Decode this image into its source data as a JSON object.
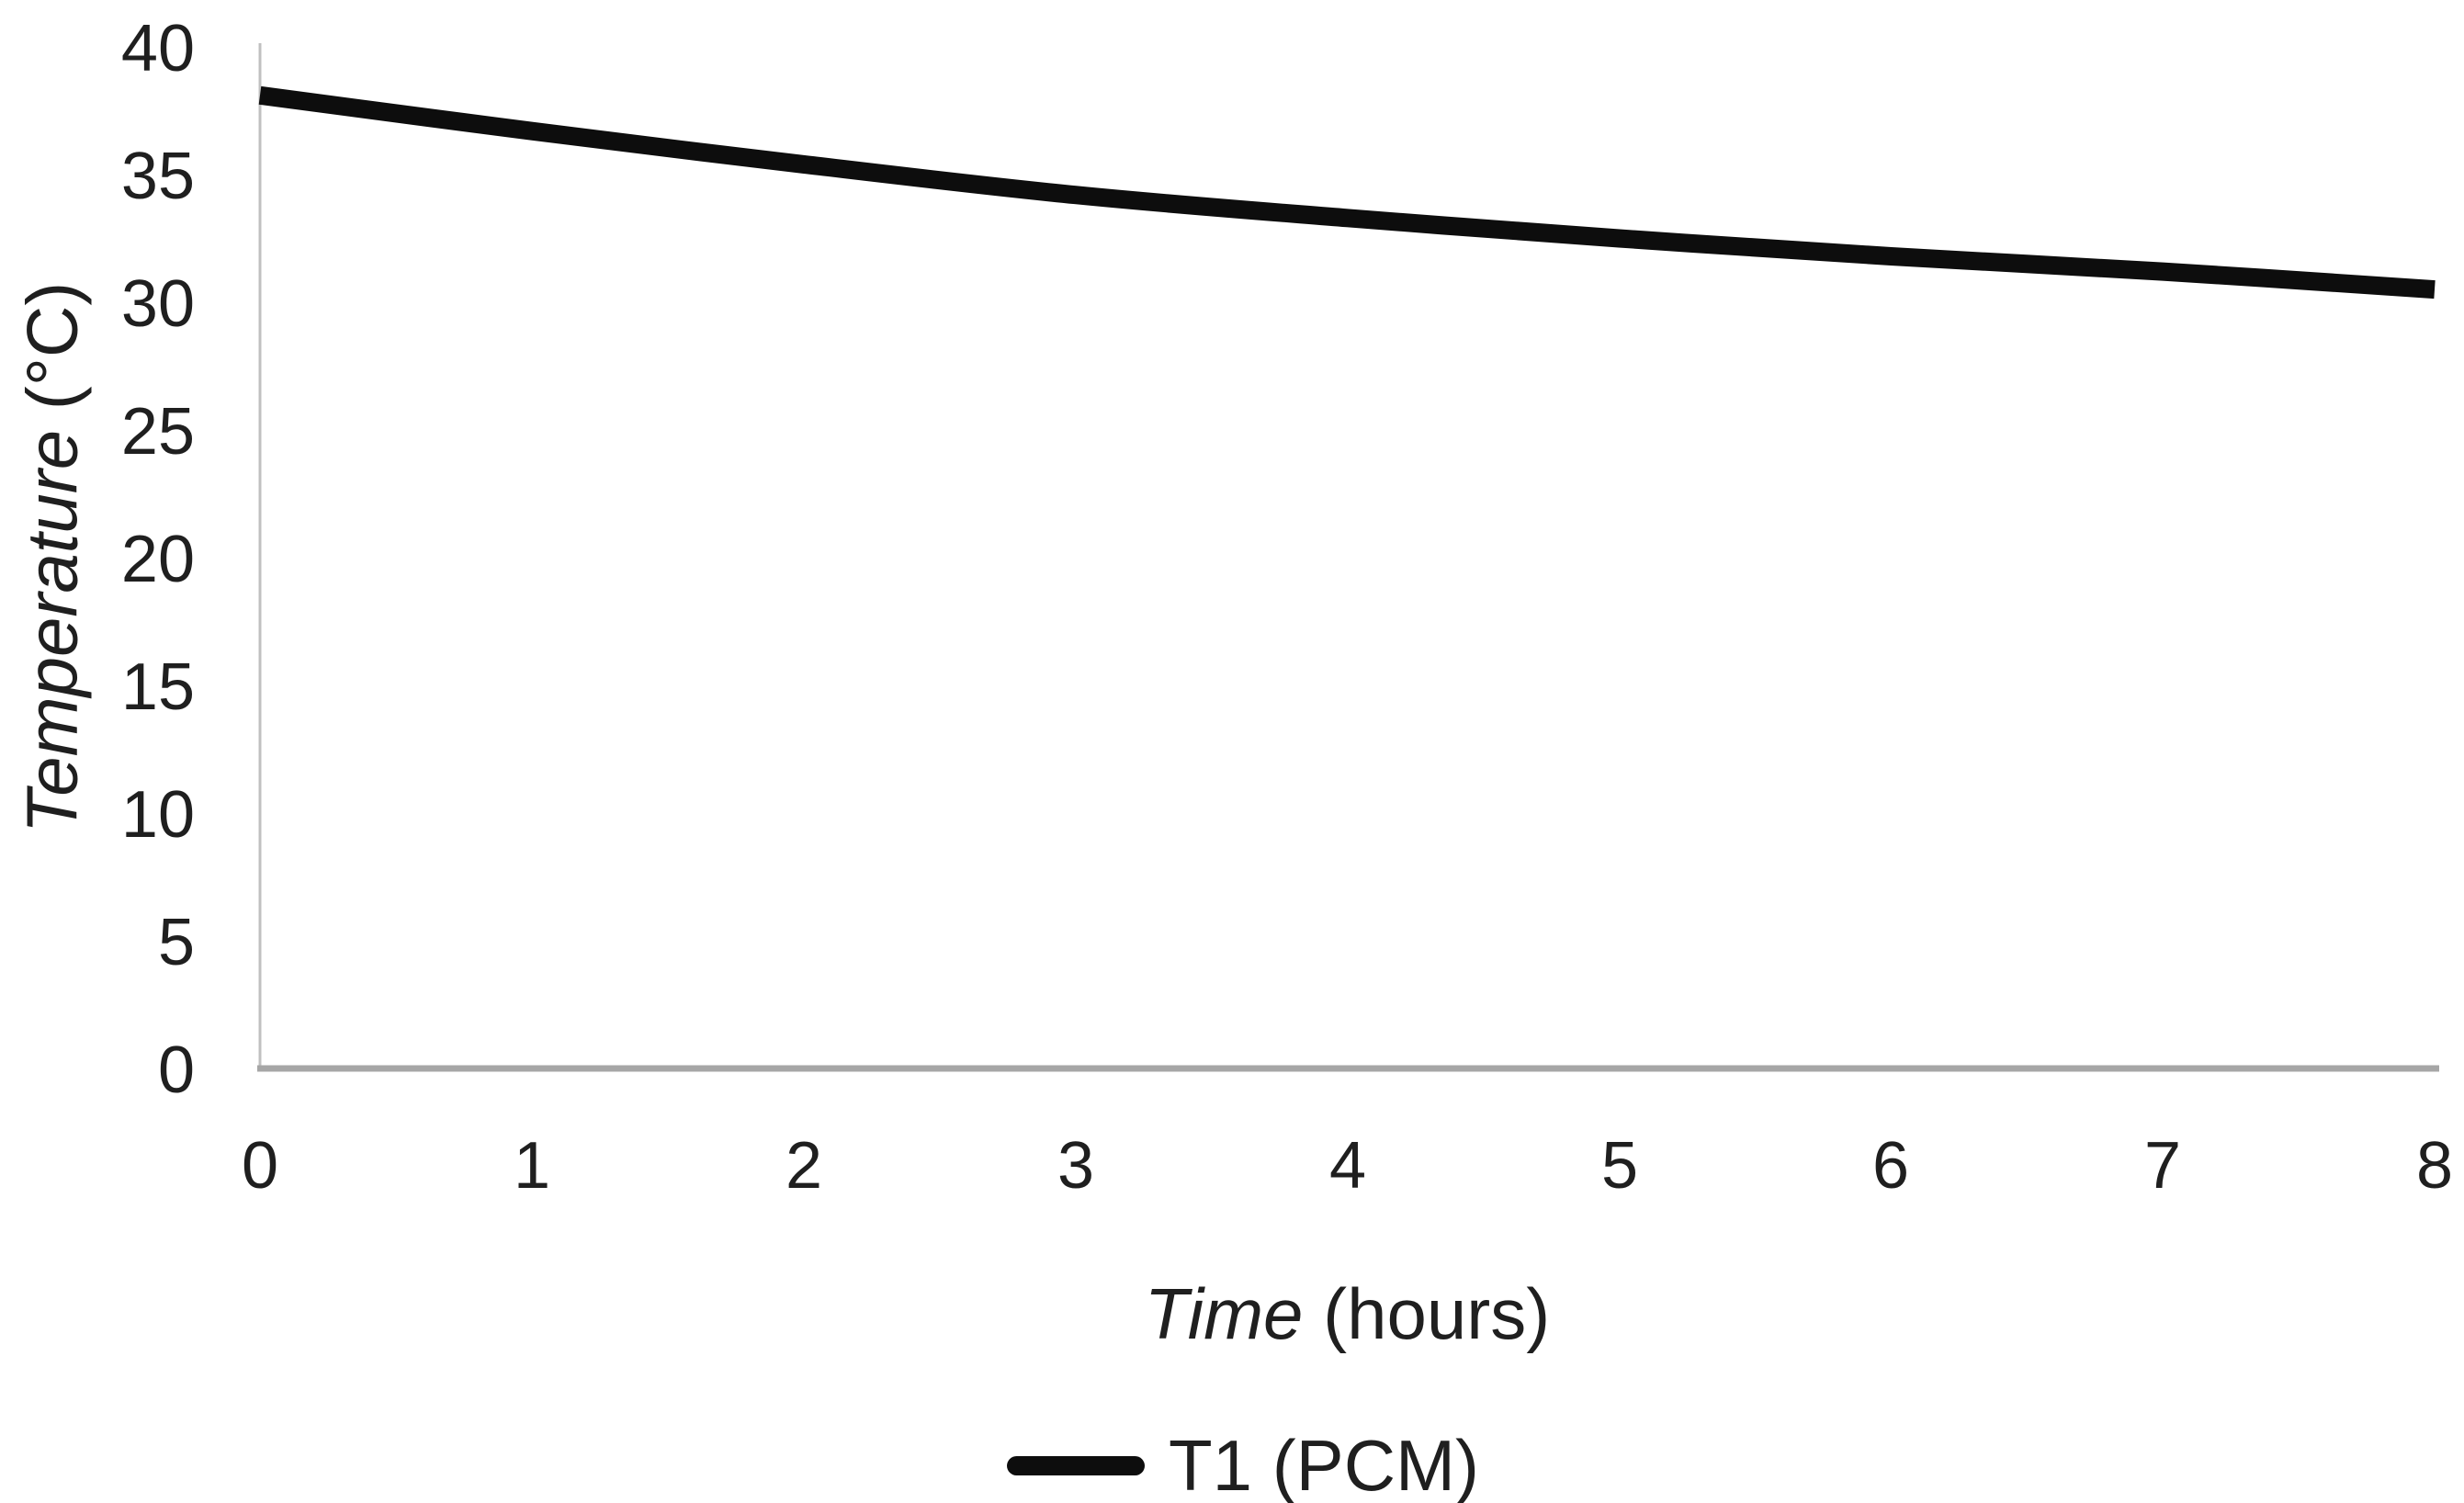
{
  "page": {
    "background": "#ffffff"
  },
  "chart_data": {
    "type": "line",
    "title": "",
    "x": [
      0,
      1,
      2,
      3,
      4,
      5,
      6,
      7,
      8
    ],
    "series": [
      {
        "name": "T1 (PCM)",
        "color": "#0d0d0d",
        "values": [
          38.1,
          36.7,
          35.4,
          34.2,
          33.3,
          32.5,
          31.8,
          31.2,
          30.5
        ]
      }
    ],
    "xlabel": "Time (hours)",
    "ylabel": "Temperature (°C)",
    "xlabel_parts": {
      "italic": "Time",
      "regular": " (hours)"
    },
    "ylabel_parts": {
      "italic": "Temperature",
      "regular": " (°C)"
    },
    "xlim": [
      0,
      8
    ],
    "ylim": [
      0,
      40
    ],
    "xticks": [
      0,
      1,
      2,
      3,
      4,
      5,
      6,
      7,
      8
    ],
    "yticks": [
      0,
      5,
      10,
      15,
      20,
      25,
      30,
      35,
      40
    ],
    "grid": false,
    "legend": {
      "position": "bottom",
      "entries": [
        "T1 (PCM)"
      ]
    },
    "axis_colors": {
      "x_axis_line": "#a6a6a6",
      "y_axis_line": "#c0c0c0"
    },
    "text_color": "#1f1f1f"
  }
}
